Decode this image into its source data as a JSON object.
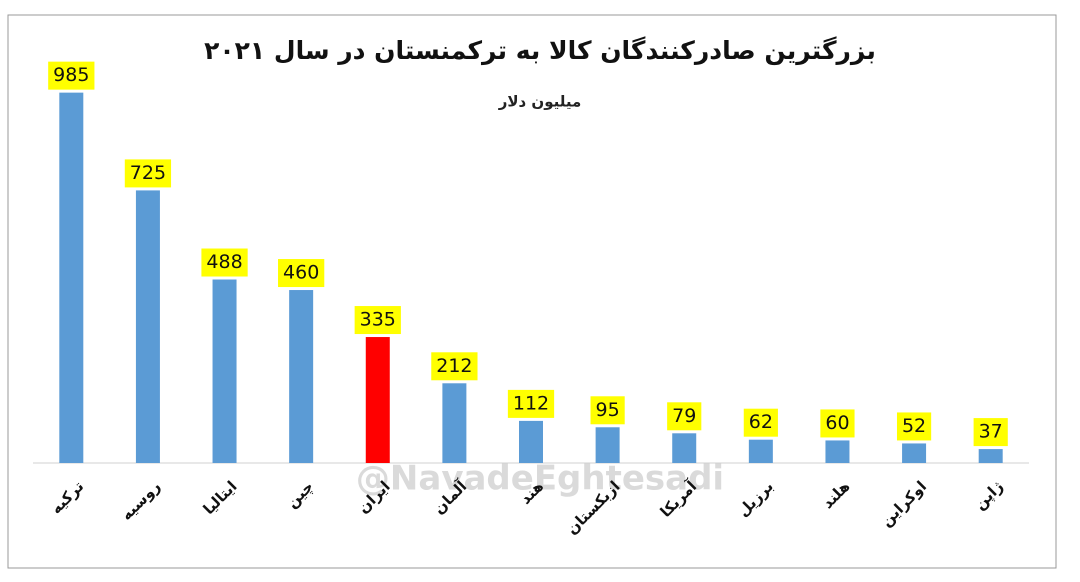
{
  "chart_data": {
    "type": "bar",
    "title": "بزرگترین صادرکنندگان کالا به ترکمنستان در سال ۲۰۲۱",
    "subtitle": "میلیون دلار",
    "watermark": "@NavadeEghtesadi",
    "categories": [
      "ترکیه",
      "روسیه",
      "ایتالیا",
      "چین",
      "ایران",
      "آلمان",
      "هند",
      "ازبکستان",
      "آمریکا",
      "برزیل",
      "هلند",
      "اوکراین",
      "ژاپن"
    ],
    "values": [
      985,
      725,
      488,
      460,
      335,
      212,
      112,
      95,
      79,
      62,
      60,
      52,
      37
    ],
    "colors": [
      "#5b9bd5",
      "#5b9bd5",
      "#5b9bd5",
      "#5b9bd5",
      "#ff0000",
      "#5b9bd5",
      "#5b9bd5",
      "#5b9bd5",
      "#5b9bd5",
      "#5b9bd5",
      "#5b9bd5",
      "#5b9bd5",
      "#5b9bd5"
    ],
    "ylim": [
      0,
      1000
    ],
    "label_box_color": "#ffff00"
  }
}
